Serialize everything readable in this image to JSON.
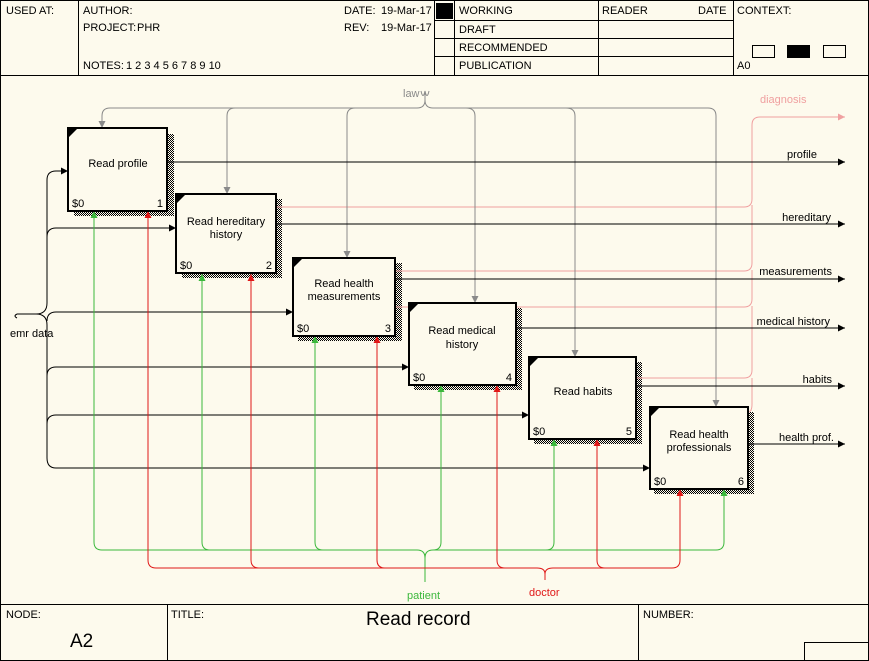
{
  "header": {
    "used_at_label": "USED AT:",
    "author_label": "AUTHOR:",
    "project_label": "PROJECT:",
    "project_value": "PHR",
    "notes_label": "NOTES:",
    "notes_value": "1  2  3  4  5  6  7  8  9  10",
    "date_label": "DATE:",
    "date_value": "19-Mar-17",
    "rev_label": "REV:",
    "rev_value": "19-Mar-17",
    "status": [
      "WORKING",
      "DRAFT",
      "RECOMMENDED",
      "PUBLICATION"
    ],
    "reader_label": "READER",
    "reader_date_label": "DATE",
    "context_label": "CONTEXT:",
    "context_value": "A0"
  },
  "footer": {
    "node_label": "NODE:",
    "node_value": "A2",
    "title_label": "TITLE:",
    "title_value": "Read record",
    "number_label": "NUMBER:"
  },
  "diagram": {
    "boxes": [
      {
        "id": "1",
        "line1": "Read profile",
        "line2": "",
        "cost": "$0"
      },
      {
        "id": "2",
        "line1": "Read hereditary",
        "line2": "history",
        "cost": "$0"
      },
      {
        "id": "3",
        "line1": "Read health",
        "line2": "measurements",
        "cost": "$0"
      },
      {
        "id": "4",
        "line1": "Read medical",
        "line2": "history",
        "cost": "$0"
      },
      {
        "id": "5",
        "line1": "Read habits",
        "line2": "",
        "cost": "$0"
      },
      {
        "id": "6",
        "line1": "Read health",
        "line2": "professionals",
        "cost": "$0"
      }
    ],
    "input_label": "emr data",
    "control_label": "law",
    "mechanisms": [
      "patient",
      "doctor"
    ],
    "outputs": [
      "profile",
      "hereditary",
      "measurements",
      "medical history",
      "habits",
      "health prof."
    ],
    "extra_output": "diagnosis",
    "colors": {
      "control": "#8a8a8a",
      "patient": "#3cb83c",
      "doctor": "#e01818",
      "diagnosis": "#f0a0a0",
      "box_fill": "#fdfaed",
      "background": "#fdfaed",
      "status_marker": "#000000"
    }
  }
}
